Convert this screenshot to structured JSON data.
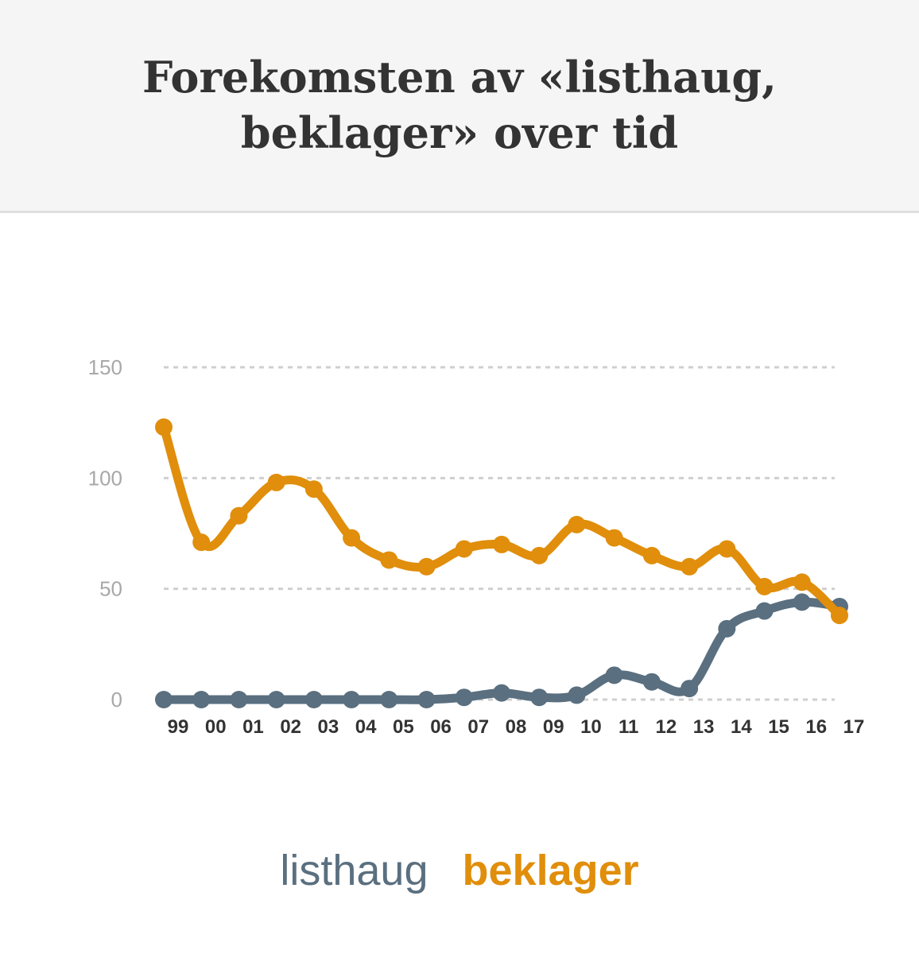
{
  "header": {
    "title_line1": "Forekomsten av «listhaug,",
    "title_line2": "beklager» over tid"
  },
  "colors": {
    "listhaug": "#5a6f7f",
    "beklager": "#e08e0b",
    "grid": "#cfcfcf"
  },
  "chart_data": {
    "type": "line",
    "title": "Forekomsten av «listhaug, beklager» over tid",
    "categories": [
      "99",
      "00",
      "01",
      "02",
      "03",
      "04",
      "05",
      "06",
      "07",
      "08",
      "09",
      "10",
      "11",
      "12",
      "13",
      "14",
      "15",
      "16",
      "17"
    ],
    "y_ticks": [
      "0",
      "50",
      "100",
      "150"
    ],
    "ylim": [
      0,
      150
    ],
    "grid": true,
    "legend_position": "bottom",
    "series": [
      {
        "name": "listhaug",
        "color": "#5a6f7f",
        "values": [
          0,
          0,
          0,
          0,
          0,
          0,
          0,
          0,
          1,
          3,
          1,
          2,
          11,
          8,
          5,
          32,
          40,
          44,
          42
        ]
      },
      {
        "name": "beklager",
        "color": "#e08e0b",
        "values": [
          123,
          71,
          83,
          98,
          95,
          73,
          63,
          60,
          68,
          70,
          65,
          79,
          73,
          65,
          60,
          68,
          51,
          53,
          38
        ]
      }
    ]
  }
}
